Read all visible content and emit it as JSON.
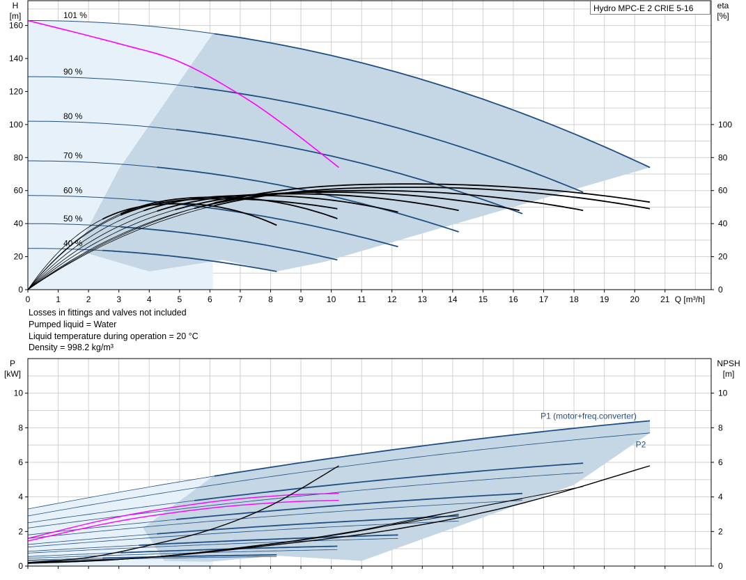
{
  "legend_box": "Hydro MPC-E 2 CRIE 5-16",
  "notes": [
    "Losses in fittings and valves not included",
    "Pumped liquid = Water",
    "Liquid temperature during operation = 20 °C",
    "Density = 998.2 kg/m³"
  ],
  "colors": {
    "grid": "#cfcfcf",
    "speed_curve": "#1f4f82",
    "duty_curve": "#ff00ff",
    "efficiency_curve": "#000000",
    "operating_area": "#c5d6e4",
    "extended_area": "#e6f1fa"
  },
  "chart_data": [
    {
      "type": "line",
      "title": "",
      "xlabel": "Q [m³/h]",
      "ylabel": "H [m]",
      "y2label": "eta [%]",
      "xlim": [
        0,
        22.5
      ],
      "ylim": [
        0,
        175
      ],
      "y2lim": [
        0,
        175
      ],
      "x_ticks": [
        0,
        1,
        2,
        3,
        4,
        5,
        6,
        7,
        8,
        9,
        10,
        11,
        12,
        13,
        14,
        15,
        16,
        17,
        18,
        19,
        20,
        21
      ],
      "x_tick_labels": [
        "0",
        "1",
        "2",
        "3",
        "4",
        "5",
        "6",
        "7",
        "8",
        "9",
        "10",
        "11",
        "12",
        "13",
        "14",
        "15",
        "16",
        "17",
        "18",
        "19",
        "20",
        "21"
      ],
      "y_ticks": [
        0,
        20,
        40,
        60,
        80,
        100,
        120,
        140,
        160
      ],
      "y2_ticks": [
        0,
        20,
        40,
        60,
        80,
        100
      ],
      "grid": true,
      "speed_curves": [
        {
          "label": "101 %",
          "q_max": 20.5,
          "h0": 163,
          "h_end": 74
        },
        {
          "label": "90 %",
          "q_max": 18.3,
          "h0": 129,
          "h_end": 59
        },
        {
          "label": "80 %",
          "q_max": 16.3,
          "h0": 102,
          "h_end": 46
        },
        {
          "label": "70 %",
          "q_max": 14.2,
          "h0": 78,
          "h_end": 35
        },
        {
          "label": "60 %",
          "q_max": 12.2,
          "h0": 57,
          "h_end": 26
        },
        {
          "label": "50 %",
          "q_max": 10.2,
          "h0": 40,
          "h_end": 18
        },
        {
          "label": "40 %",
          "q_max": 8.2,
          "h0": 25,
          "h_end": 11
        }
      ],
      "operating_area": [
        [
          0,
          163
        ],
        [
          6.1,
          149
        ],
        [
          3,
          73
        ],
        [
          1.6,
          24
        ],
        [
          4,
          11
        ],
        [
          6.4,
          18
        ],
        [
          8.2,
          11
        ],
        [
          9.8,
          17
        ],
        [
          20.5,
          74
        ]
      ],
      "extended_area_x_max": 6.1,
      "duty_curve": {
        "x": [
          0,
          3,
          5,
          7,
          8.5,
          10.25
        ],
        "y": [
          163,
          149,
          138,
          118,
          99,
          74
        ]
      },
      "efficiency_curves": [
        {
          "q_end": 20.5,
          "eta_peak": 64,
          "eta_end": 53
        },
        {
          "q_end": 20.5,
          "eta_peak": 62,
          "eta_end": 49
        },
        {
          "q_end": 18.3,
          "eta_peak": 60,
          "eta_end": 48
        },
        {
          "q_end": 16.2,
          "eta_peak": 59,
          "eta_end": 48
        },
        {
          "q_end": 14.2,
          "eta_peak": 58,
          "eta_end": 48
        },
        {
          "q_end": 12.2,
          "eta_peak": 57,
          "eta_end": 47
        },
        {
          "q_end": 10.2,
          "eta_peak": 56,
          "eta_end": 43
        },
        {
          "q_end": 10.2,
          "eta_peak": 55,
          "eta_end": 49
        },
        {
          "q_end": 8.2,
          "eta_peak": 52,
          "eta_end": 39
        }
      ]
    },
    {
      "type": "line",
      "title": "",
      "xlabel": "",
      "ylabel": "P [kW]",
      "y2label": "NPSH [m]",
      "xlim": [
        0,
        22.5
      ],
      "ylim": [
        0,
        12
      ],
      "y2lim": [
        0,
        12
      ],
      "y_ticks": [
        0,
        2,
        4,
        6,
        8,
        10
      ],
      "y2_ticks": [
        0,
        2,
        4,
        6,
        8,
        10
      ],
      "grid": true,
      "series_labels": {
        "p1": "P1 (motor+freq.converter)",
        "p2": "P2"
      },
      "power_curves": [
        {
          "series": "p1",
          "q_max": 20.5,
          "p0": 3.3,
          "p_end": 8.4
        },
        {
          "series": "p2",
          "q_max": 20.5,
          "p0": 2.9,
          "p_end": 7.7
        },
        {
          "series": "p1",
          "q_max": 18.3,
          "p0": 2.5,
          "p_end": 5.95
        },
        {
          "series": "p2",
          "q_max": 18.3,
          "p0": 2.2,
          "p_end": 5.4
        },
        {
          "series": "p1",
          "q_max": 16.3,
          "p0": 1.8,
          "p_end": 4.2
        },
        {
          "series": "p2",
          "q_max": 16.3,
          "p0": 1.6,
          "p_end": 3.8
        },
        {
          "series": "p1",
          "q_max": 14.2,
          "p0": 1.25,
          "p_end": 2.9
        },
        {
          "series": "p2",
          "q_max": 14.2,
          "p0": 1.1,
          "p_end": 2.6
        },
        {
          "series": "p1",
          "q_max": 12.2,
          "p0": 0.85,
          "p_end": 1.8
        },
        {
          "series": "p2",
          "q_max": 12.2,
          "p0": 0.75,
          "p_end": 1.6
        },
        {
          "series": "p1",
          "q_max": 10.2,
          "p0": 0.55,
          "p_end": 1.15
        },
        {
          "series": "p2",
          "q_max": 10.2,
          "p0": 0.45,
          "p_end": 0.95
        },
        {
          "series": "p1",
          "q_max": 8.2,
          "p0": 0.35,
          "p_end": 0.65
        },
        {
          "series": "p2",
          "q_max": 8.2,
          "p0": 0.3,
          "p_end": 0.55
        }
      ],
      "duty_power_curves": [
        {
          "x": [
            0,
            3,
            6,
            8.5,
            10.25
          ],
          "y": [
            1.6,
            2.85,
            3.7,
            4.1,
            4.2
          ]
        },
        {
          "x": [
            0,
            3,
            6,
            8.5,
            10.25
          ],
          "y": [
            1.45,
            2.6,
            3.35,
            3.7,
            3.8
          ]
        }
      ],
      "npsh_curves": [
        {
          "x": [
            0,
            2,
            4,
            6,
            8,
            10.25
          ],
          "y": [
            0.2,
            0.5,
            1.2,
            2.1,
            3.5,
            5.8
          ]
        },
        {
          "x": [
            0,
            4,
            8,
            12,
            16,
            20.5
          ],
          "y": [
            0.2,
            0.5,
            1.2,
            2.1,
            3.5,
            5.8
          ]
        },
        {
          "x": [
            0,
            3.6,
            7.1,
            10.7,
            14.2,
            18.3
          ],
          "y": [
            0.2,
            0.45,
            1.1,
            1.95,
            3.2,
            4.6
          ]
        },
        {
          "x": [
            0,
            3.2,
            6.5,
            9.8,
            13,
            16.3
          ],
          "y": [
            0.15,
            0.4,
            0.95,
            1.7,
            2.8,
            3.9
          ]
        },
        {
          "x": [
            0,
            2.8,
            5.7,
            8.5,
            11.4,
            14.2
          ],
          "y": [
            0.15,
            0.35,
            0.8,
            1.4,
            2.2,
            3.0
          ]
        }
      ],
      "operating_area": [
        [
          0,
          1.6
        ],
        [
          3.8,
          2.2
        ],
        [
          6.1,
          5.5
        ],
        [
          20.5,
          8.4
        ],
        [
          20.5,
          7.7
        ],
        [
          18,
          4.7
        ],
        [
          11,
          0.3
        ],
        [
          8.2,
          0.6
        ],
        [
          6,
          0.25
        ],
        [
          0,
          0.3
        ]
      ],
      "extended_area_x_max": 6.1
    }
  ]
}
